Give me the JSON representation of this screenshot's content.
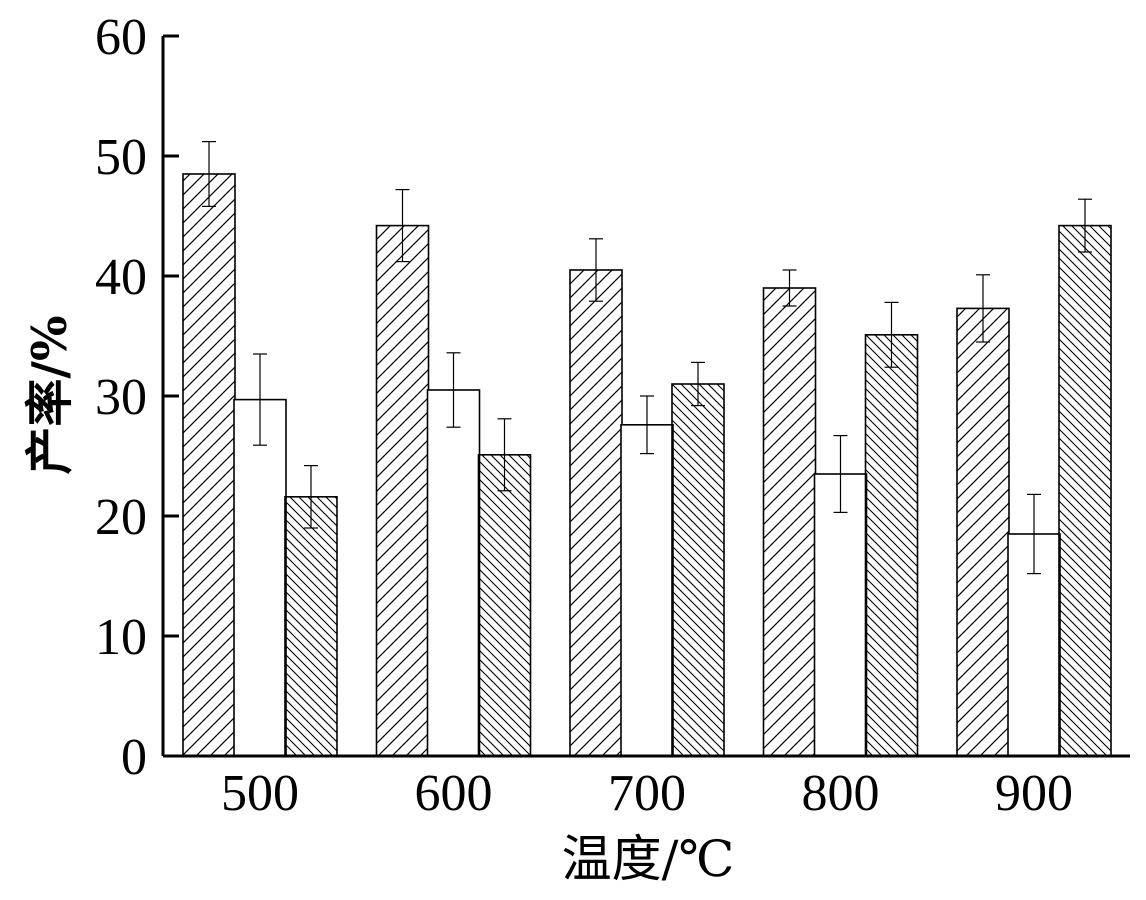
{
  "chart_data": {
    "type": "bar",
    "title": "",
    "xlabel": "温度/℃",
    "ylabel": "产率/%",
    "ylim": [
      0,
      60
    ],
    "yticks": [
      0,
      10,
      20,
      30,
      40,
      50,
      60
    ],
    "categories": [
      "500",
      "600",
      "700",
      "800",
      "900"
    ],
    "grid": false,
    "legend": "none",
    "series": [
      {
        "pattern": "hatch-forward",
        "values": [
          48.5,
          44.2,
          40.5,
          39.0,
          37.3
        ],
        "errors": [
          2.7,
          3.0,
          2.6,
          1.5,
          2.8
        ]
      },
      {
        "pattern": "plain",
        "values": [
          29.7,
          30.5,
          27.6,
          23.5,
          18.5
        ],
        "errors": [
          3.8,
          3.1,
          2.4,
          3.2,
          3.3
        ]
      },
      {
        "pattern": "hatch-backward",
        "values": [
          21.6,
          25.1,
          31.0,
          35.1,
          44.2
        ],
        "errors": [
          2.6,
          3.0,
          1.8,
          2.7,
          2.2
        ]
      }
    ]
  }
}
